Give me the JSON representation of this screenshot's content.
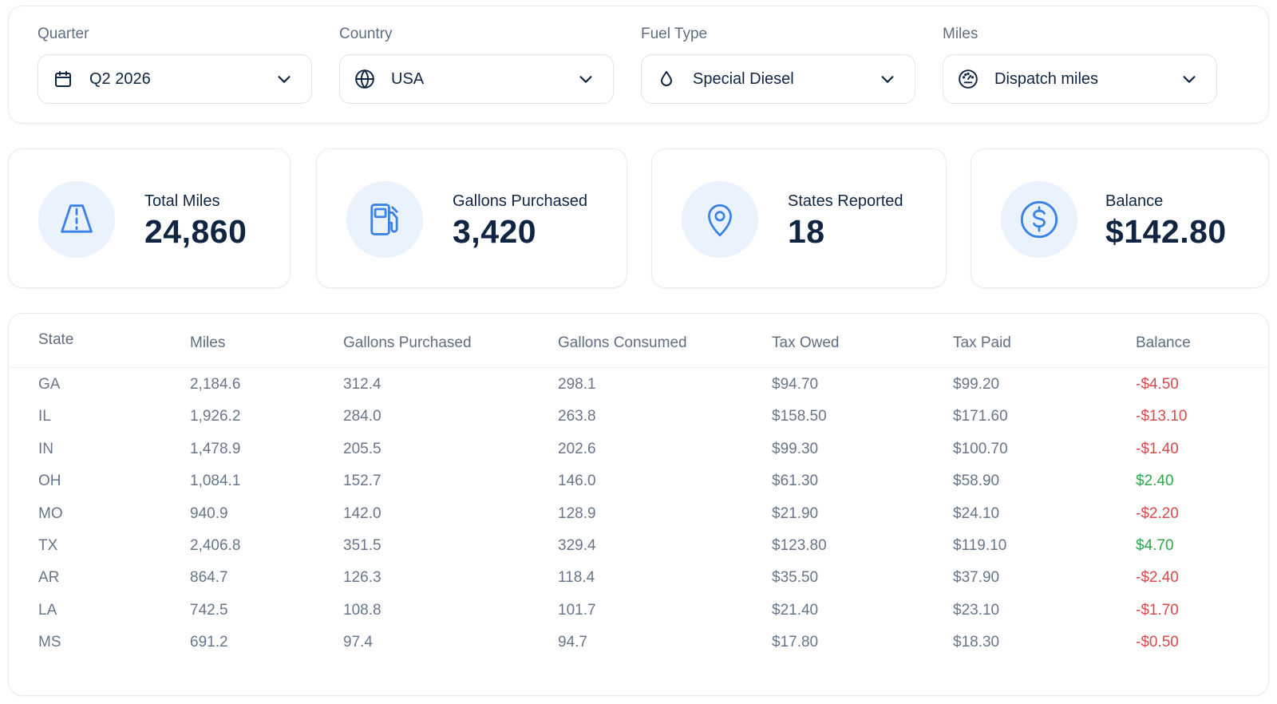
{
  "filters": [
    {
      "label": "Quarter",
      "value": "Q2 2026",
      "icon": "calendar-icon"
    },
    {
      "label": "Country",
      "value": "USA",
      "icon": "globe-icon"
    },
    {
      "label": "Fuel Type",
      "value": "Special Diesel",
      "icon": "droplet-icon"
    },
    {
      "label": "Miles",
      "value": "Dispatch miles",
      "icon": "gauge-icon"
    }
  ],
  "stats": [
    {
      "label": "Total Miles",
      "value": "24,860",
      "icon": "road-icon"
    },
    {
      "label": "Gallons Purchased",
      "value": "3,420",
      "icon": "fuel-pump-icon"
    },
    {
      "label": "States Reported",
      "value": "18",
      "icon": "map-pin-icon"
    },
    {
      "label": "Balance",
      "value": "$142.80",
      "icon": "dollar-circle-icon"
    }
  ],
  "table": {
    "columns": [
      "State",
      "Miles",
      "Gallons Purchased",
      "Gallons Consumed",
      "Tax Owed",
      "Tax Paid",
      "Balance"
    ],
    "rows": [
      [
        "GA",
        "2,184.6",
        "312.4",
        "298.1",
        "$94.70",
        "$99.20",
        "-$4.50"
      ],
      [
        "IL",
        "1,926.2",
        "284.0",
        "263.8",
        "$158.50",
        "$171.60",
        "-$13.10"
      ],
      [
        "IN",
        "1,478.9",
        "205.5",
        "202.6",
        "$99.30",
        "$100.70",
        "-$1.40"
      ],
      [
        "OH",
        "1,084.1",
        "152.7",
        "146.0",
        "$61.30",
        "$58.90",
        "$2.40"
      ],
      [
        "MO",
        "940.9",
        "142.0",
        "128.9",
        "$21.90",
        "$24.10",
        "-$2.20"
      ],
      [
        "TX",
        "2,406.8",
        "351.5",
        "329.4",
        "$123.80",
        "$119.10",
        "$4.70"
      ],
      [
        "AR",
        "864.7",
        "126.3",
        "118.4",
        "$35.50",
        "$37.90",
        "-$2.40"
      ],
      [
        "LA",
        "742.5",
        "108.8",
        "101.7",
        "$21.40",
        "$23.10",
        "-$1.70"
      ],
      [
        "MS",
        "691.2",
        "97.4",
        "94.7",
        "$17.80",
        "$18.30",
        "-$0.50"
      ]
    ]
  },
  "colors": {
    "accent": "#3b82e6",
    "icon_bg": "#eaf2fd",
    "text_primary": "#0f2541",
    "negative": "#d94a4a",
    "positive": "#2fa64a"
  }
}
